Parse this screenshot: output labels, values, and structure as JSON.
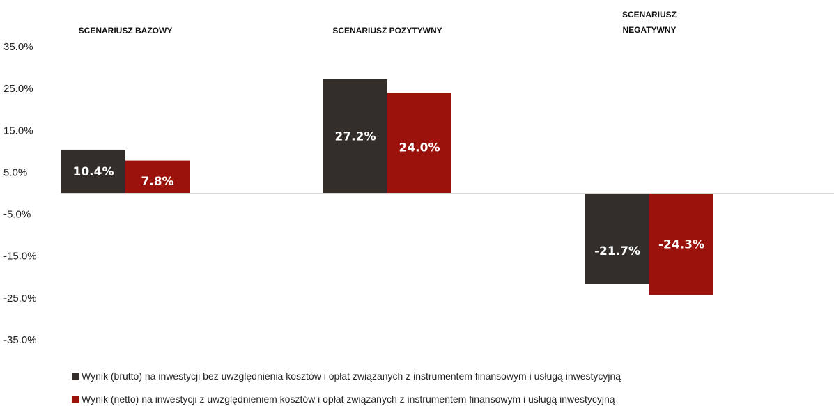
{
  "chart_data": {
    "type": "bar",
    "categories": [
      "SCENARIUSZ BAZOWY",
      "SCENARIUSZ POZYTYWNY",
      "SCENARIUSZ NEGATYWNY"
    ],
    "category_header_lines": [
      [
        "SCENARIUSZ BAZOWY"
      ],
      [
        "SCENARIUSZ POZYTYWNY"
      ],
      [
        "SCENARIUSZ",
        "NEGATYWNY"
      ]
    ],
    "series": [
      {
        "name": "Wynik (brutto) na inwestycji bez uwzględnienia kosztów i opłat związanych z instrumentem finansowym i usługą inwestycyjną",
        "values": [
          10.4,
          27.2,
          -21.7
        ],
        "labels": [
          "10.4%",
          "27.2%",
          "-21.7%"
        ],
        "color": "#332e2a"
      },
      {
        "name": "Wynik (netto) na inwestycji z uwzględnieniem kosztów i opłat związanych z instrumentem finansowym i usługą inwestycyjną",
        "values": [
          7.8,
          24.0,
          -24.3
        ],
        "labels": [
          "7.8%",
          "24.0%",
          "-24.3%"
        ],
        "color": "#9b120c"
      }
    ],
    "y_ticks": [
      "35.0%",
      "25.0%",
      "15.0%",
      "5.0%",
      "-5.0%",
      "-15.0%",
      "-25.0%",
      "-35.0%"
    ],
    "ylim": [
      -35,
      35
    ],
    "grid": false,
    "legend_position": "bottom"
  }
}
